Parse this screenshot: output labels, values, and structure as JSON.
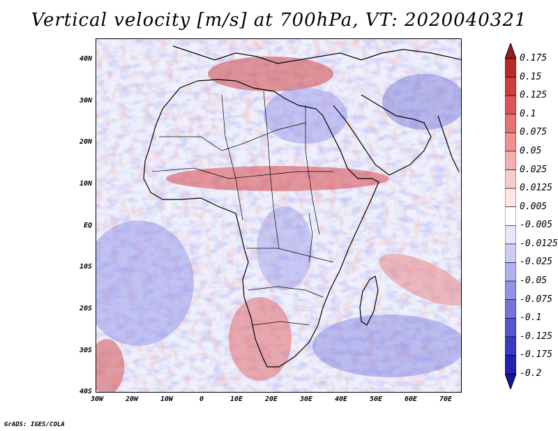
{
  "title": "Vertical velocity [m/s] at 700hPa, VT: 2020040321",
  "map": {
    "variable": "vertical-velocity",
    "units": "m/s",
    "level": "700hPa",
    "valid_time": "2020040321",
    "lon_range": [
      -30,
      75
    ],
    "lat_range": [
      -40,
      45
    ],
    "lat_ticks": [
      "40N",
      "30N",
      "20N",
      "10N",
      "EQ",
      "10S",
      "20S",
      "30S",
      "40S"
    ],
    "lon_ticks": [
      "30W",
      "20W",
      "10W",
      "0",
      "10E",
      "20E",
      "30E",
      "40E",
      "50E",
      "60E",
      "70E"
    ],
    "lat_tick_values": [
      40,
      30,
      20,
      10,
      0,
      -10,
      -20,
      -30,
      -40
    ],
    "lon_tick_values": [
      -30,
      -20,
      -10,
      0,
      10,
      20,
      30,
      40,
      50,
      60,
      70
    ]
  },
  "colorbar": {
    "labels": [
      "0.175",
      "0.15",
      "0.125",
      "0.1",
      "0.075",
      "0.05",
      "0.025",
      "0.0125",
      "0.005",
      "-0.005",
      "-0.0125",
      "-0.025",
      "-0.05",
      "-0.075",
      "-0.1",
      "-0.125",
      "-0.175",
      "-0.2"
    ],
    "colors": [
      "#9b1b1b",
      "#b82a2a",
      "#cc3d3d",
      "#dc5656",
      "#e67272",
      "#ee9191",
      "#f4b0b0",
      "#f9cccc",
      "#fce6e6",
      "#ffffff",
      "#e6e6fb",
      "#ccccf5",
      "#b0b0ef",
      "#9292e6",
      "#7474dc",
      "#5656d0",
      "#3a3ac2",
      "#2222b0",
      "#14149a"
    ]
  },
  "credit": "GrADS: IGES/COLA"
}
